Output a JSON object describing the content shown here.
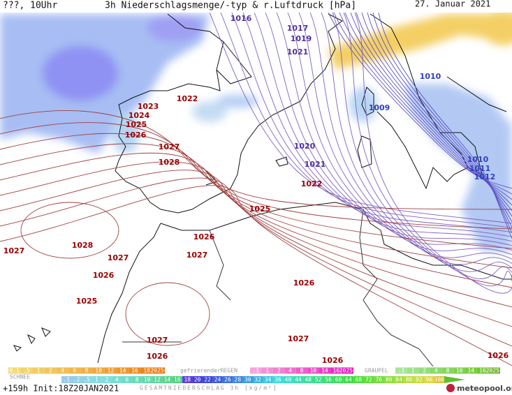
{
  "header": {
    "left": "???, 10Uhr",
    "title": "3h Niederschlagsmenge/-typ & r.Luftdruck [hPa]",
    "date": "27. Januar 2021"
  },
  "isobar_labels": [
    1016,
    1017,
    1019,
    1021,
    1010,
    1009,
    1022,
    1023,
    1024,
    1025,
    1026,
    1027,
    1028,
    1020,
    1021,
    1022,
    1025,
    1026,
    1027,
    1028,
    1027,
    1027,
    1026,
    1026,
    1025,
    1027,
    1027,
    1026,
    1026,
    1026,
    1010,
    1011,
    1012
  ],
  "legend": {
    "snow_scale": [
      "0.1",
      ".5",
      "1",
      "2",
      "4",
      "6",
      "8",
      "10",
      "12",
      "14",
      "16",
      "18",
      "2025+"
    ],
    "snow_label": "SCHNEE",
    "freezing_rain_label": "gefrierenderREGEN",
    "freezing_rain_scale": [
      ".1",
      "1",
      "2",
      "4",
      "8",
      "10",
      "14",
      "16",
      "2025+"
    ],
    "graupel_label": "GRAUPEL",
    "graupel_scale": [
      ".1",
      "1",
      "2",
      "4",
      "8",
      "10",
      "14",
      "16",
      "2025+"
    ],
    "total_scale": [
      ".1",
      ".2",
      ".5",
      "1",
      "2",
      "4",
      "6",
      "8",
      "10",
      "12",
      "14",
      "16",
      "18",
      "20",
      "22",
      "24",
      "26",
      "28",
      "30",
      "32",
      "34",
      "36",
      "40",
      "44",
      "48",
      "52",
      "56",
      "60",
      "64",
      "68",
      "72",
      "76",
      "80",
      "84",
      "88",
      "92",
      "96",
      "100"
    ],
    "total_label": "GESAMTNIEDERSCHLAG 3h [kg/m²]"
  },
  "footer": {
    "run": "+159h Init:18Z20JAN2021",
    "brand": "meteopool.org"
  }
}
